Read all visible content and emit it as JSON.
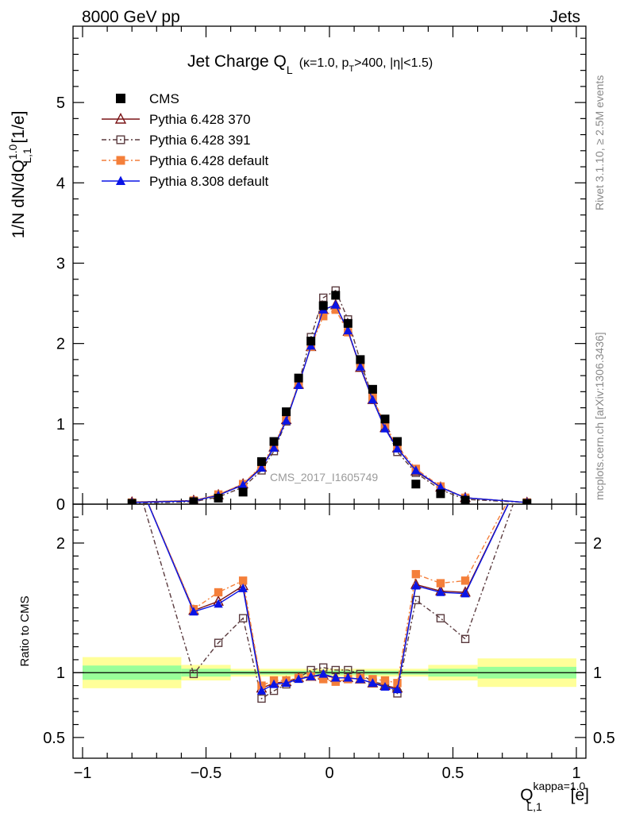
{
  "header": {
    "left": "8000 GeV pp",
    "right": "Jets"
  },
  "title": {
    "main": "Jet Charge Q",
    "main_sub": "L",
    "cond": "(κ=1.0, p",
    "cond_sub": "T",
    "cond_rest": ">400, |η|<1.5)"
  },
  "ylabel_top": {
    "pre": "1/N dN/dQ",
    "sup": "1.0",
    "sub": "L,1",
    "post": " [1/e]"
  },
  "ylabel_bottom": "Ratio to CMS",
  "xlabel": {
    "pre": "Q",
    "sup": "kappa=1.0",
    "sub": "L,1",
    "post": " [e]"
  },
  "side_text": {
    "rivet": "Rivet 3.1.10, ≥ 2.5M events",
    "mcplots": "mcplots.cern.ch [arXiv:1306.3436]"
  },
  "watermark": "CMS_2017_I1605749",
  "ticks": {
    "x": [
      {
        "v": -1,
        "label": "−1"
      },
      {
        "v": -0.5,
        "label": "−0.5"
      },
      {
        "v": 0,
        "label": "0"
      },
      {
        "v": 0.5,
        "label": "0.5"
      },
      {
        "v": 1,
        "label": "1"
      }
    ],
    "y_top": [
      {
        "v": 0,
        "label": "0"
      },
      {
        "v": 1,
        "label": "1"
      },
      {
        "v": 2,
        "label": "2"
      },
      {
        "v": 3,
        "label": "3"
      },
      {
        "v": 4,
        "label": "4"
      },
      {
        "v": 5,
        "label": "5"
      }
    ],
    "y_ratio": [
      {
        "v": 0.5,
        "label": "0.5"
      },
      {
        "v": 1,
        "label": "1"
      },
      {
        "v": 2,
        "label": "2"
      }
    ]
  },
  "chart_data": {
    "type": "line",
    "xlim": [
      -1.0,
      1.0
    ],
    "ylim_top": [
      0,
      5.95
    ],
    "ylim_ratio": [
      0.34,
      2.3
    ],
    "legend_position": "top-left",
    "band_bins": [
      -1.0,
      -0.6,
      -0.4,
      0.4,
      0.6,
      1.0
    ],
    "band_inner": [
      0.055,
      0.03,
      0.015,
      0.03,
      0.045
    ],
    "band_outer": [
      0.12,
      0.06,
      0.03,
      0.06,
      0.11
    ],
    "x": [
      -0.8,
      -0.55,
      -0.45,
      -0.35,
      -0.275,
      -0.225,
      -0.175,
      -0.125,
      -0.075,
      -0.025,
      0.025,
      0.075,
      0.125,
      0.175,
      0.225,
      0.275,
      0.35,
      0.45,
      0.55,
      0.8
    ],
    "series": [
      {
        "name": "CMS",
        "color": "#000000",
        "marker": "square-filled",
        "dash": "",
        "values": [
          0.01,
          0.03,
          0.075,
          0.15,
          0.53,
          0.78,
          1.15,
          1.57,
          2.03,
          2.47,
          2.6,
          2.25,
          1.8,
          1.43,
          1.06,
          0.78,
          0.25,
          0.13,
          0.05,
          0.01
        ],
        "ratio": []
      },
      {
        "name": "Pythia 6.428 370",
        "color": "#7a1416",
        "marker": "triangle-open",
        "dash": "",
        "values": [
          0.025,
          0.045,
          0.115,
          0.25,
          0.46,
          0.71,
          1.05,
          1.49,
          1.96,
          2.42,
          2.48,
          2.15,
          1.7,
          1.3,
          0.95,
          0.7,
          0.41,
          0.21,
          0.08,
          0.02
        ],
        "ratio": [
          2.6,
          1.48,
          1.55,
          1.67,
          0.88,
          0.92,
          0.93,
          0.96,
          0.97,
          0.98,
          0.96,
          0.96,
          0.95,
          0.92,
          0.9,
          0.88,
          1.68,
          1.63,
          1.62,
          2.6
        ]
      },
      {
        "name": "Pythia 6.428 391",
        "color": "#5a3a3e",
        "marker": "square-open",
        "dash": "6,3,2,3",
        "values": [
          0.01,
          0.03,
          0.09,
          0.21,
          0.42,
          0.66,
          1.03,
          1.5,
          2.08,
          2.57,
          2.66,
          2.3,
          1.78,
          1.33,
          0.96,
          0.65,
          0.39,
          0.18,
          0.06,
          0.02
        ],
        "ratio": [
          2.6,
          0.99,
          1.23,
          1.42,
          0.8,
          0.86,
          0.91,
          0.96,
          1.02,
          1.04,
          1.02,
          1.02,
          0.99,
          0.93,
          0.91,
          0.84,
          1.56,
          1.42,
          1.26,
          2.6
        ]
      },
      {
        "name": "Pythia 6.428 default",
        "color": "#f47f3a",
        "marker": "square-filled",
        "dash": "6,3,2,3",
        "values": [
          0.02,
          0.045,
          0.12,
          0.25,
          0.48,
          0.73,
          1.07,
          1.5,
          1.96,
          2.34,
          2.42,
          2.14,
          1.72,
          1.33,
          0.99,
          0.72,
          0.44,
          0.22,
          0.08,
          0.02
        ],
        "ratio": [
          2.6,
          1.49,
          1.62,
          1.71,
          0.9,
          0.94,
          0.94,
          0.96,
          0.97,
          0.95,
          0.93,
          0.95,
          0.96,
          0.95,
          0.94,
          0.92,
          1.76,
          1.69,
          1.71,
          2.6
        ]
      },
      {
        "name": "Pythia 8.308 default",
        "color": "#0a14e6",
        "marker": "triangle-filled",
        "dash": "",
        "values": [
          0.02,
          0.04,
          0.11,
          0.24,
          0.45,
          0.7,
          1.04,
          1.48,
          1.97,
          2.42,
          2.48,
          2.16,
          1.71,
          1.3,
          0.94,
          0.69,
          0.42,
          0.21,
          0.08,
          0.02
        ],
        "ratio": [
          2.6,
          1.47,
          1.53,
          1.65,
          0.86,
          0.91,
          0.92,
          0.95,
          0.97,
          0.99,
          0.96,
          0.96,
          0.95,
          0.92,
          0.89,
          0.87,
          1.67,
          1.62,
          1.61,
          2.6
        ]
      }
    ]
  }
}
